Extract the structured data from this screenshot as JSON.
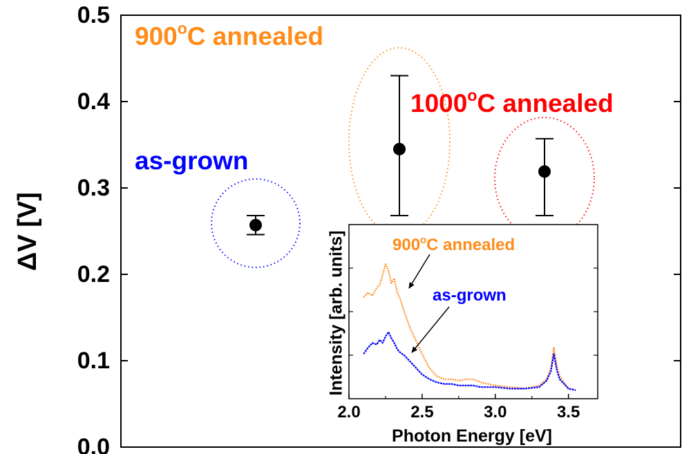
{
  "chart_data": [
    {
      "type": "scatter",
      "ylabel": "ΔV [V]",
      "ylim": [
        0.0,
        0.5
      ],
      "yticks": [
        "0.0",
        "0.1",
        "0.2",
        "0.3",
        "0.4",
        "0.5"
      ],
      "xlabel": "",
      "x_categories": [
        "as-grown",
        "900°C annealed",
        "1000°C annealed"
      ],
      "points": [
        {
          "name": "as-grown",
          "x": 1,
          "y": 0.257,
          "err_low": 0.246,
          "err_high": 0.268,
          "color": "#0000ff",
          "label": "as-grown"
        },
        {
          "name": "900C",
          "x": 2,
          "y": 0.345,
          "err_low": 0.268,
          "err_high": 0.43,
          "color": "#ff8c1a",
          "label_main": "900",
          "label_sup": "o",
          "label_rest": "C annealed"
        },
        {
          "name": "1000C",
          "x": 3,
          "y": 0.319,
          "err_low": 0.268,
          "err_high": 0.357,
          "color": "#ff0000",
          "label_main": "1000",
          "label_sup": "o",
          "label_rest": "C annealed"
        }
      ]
    },
    {
      "type": "line",
      "role": "inset",
      "xlabel": "Photon Energy [eV]",
      "ylabel": "Intensity [arb. units]",
      "xlim": [
        2.0,
        3.7
      ],
      "xticks": [
        "2.0",
        "2.5",
        "3.0",
        "3.5"
      ],
      "ylim": [
        0,
        1
      ],
      "series": [
        {
          "name": "900°C annealed",
          "label_main": "900",
          "label_sup": "o",
          "label_rest": "C annealed",
          "color": "#ff8c1a",
          "x": [
            2.1,
            2.13,
            2.16,
            2.19,
            2.21,
            2.23,
            2.25,
            2.27,
            2.29,
            2.31,
            2.33,
            2.35,
            2.38,
            2.42,
            2.46,
            2.5,
            2.55,
            2.6,
            2.65,
            2.7,
            2.75,
            2.8,
            2.85,
            2.9,
            3.0,
            3.1,
            3.2,
            3.3,
            3.35,
            3.38,
            3.4,
            3.42,
            3.44,
            3.47,
            3.5,
            3.55
          ],
          "y": [
            0.6,
            0.63,
            0.61,
            0.66,
            0.68,
            0.74,
            0.81,
            0.77,
            0.69,
            0.72,
            0.63,
            0.59,
            0.5,
            0.4,
            0.32,
            0.24,
            0.15,
            0.1,
            0.08,
            0.08,
            0.07,
            0.08,
            0.08,
            0.06,
            0.04,
            0.03,
            0.02,
            0.04,
            0.08,
            0.15,
            0.28,
            0.17,
            0.1,
            0.06,
            0.02,
            0.01
          ]
        },
        {
          "name": "as-grown",
          "label": "as-grown",
          "color": "#0000ff",
          "x": [
            2.1,
            2.13,
            2.16,
            2.19,
            2.21,
            2.23,
            2.25,
            2.27,
            2.29,
            2.31,
            2.33,
            2.35,
            2.38,
            2.42,
            2.46,
            2.5,
            2.55,
            2.6,
            2.65,
            2.7,
            2.75,
            2.8,
            2.85,
            2.9,
            3.0,
            3.1,
            3.2,
            3.3,
            3.35,
            3.38,
            3.4,
            3.42,
            3.44,
            3.47,
            3.5,
            3.55
          ],
          "y": [
            0.24,
            0.28,
            0.31,
            0.3,
            0.33,
            0.31,
            0.35,
            0.38,
            0.34,
            0.31,
            0.27,
            0.25,
            0.23,
            0.19,
            0.15,
            0.11,
            0.08,
            0.06,
            0.05,
            0.05,
            0.04,
            0.04,
            0.04,
            0.03,
            0.03,
            0.02,
            0.02,
            0.03,
            0.07,
            0.13,
            0.24,
            0.14,
            0.08,
            0.05,
            0.02,
            0.01
          ]
        }
      ]
    }
  ]
}
